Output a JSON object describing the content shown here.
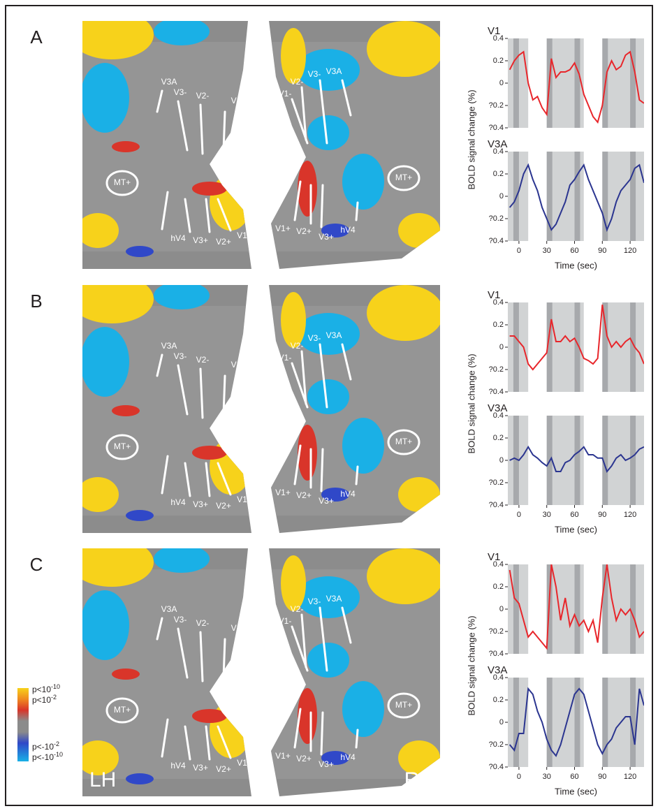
{
  "figure": {
    "panels": [
      "A",
      "B",
      "C"
    ],
    "areas_lh": [
      "V3A",
      "V3-",
      "V2-",
      "V1-",
      "MT+",
      "hV4",
      "V3+",
      "V2+",
      "V1+"
    ],
    "areas_rh": [
      "V1-",
      "V2-",
      "V3-",
      "V3A",
      "MT+",
      "V1+",
      "V2+",
      "V3+",
      "hV4"
    ],
    "hemispheres": [
      "LH",
      "RH"
    ],
    "legend": [
      {
        "base": "p<10",
        "exp": "-10"
      },
      {
        "base": "p<10",
        "exp": "-2"
      },
      {
        "base": "p<-10",
        "exp": "-2"
      },
      {
        "base": "p<-10",
        "exp": "-10"
      }
    ]
  },
  "stimulus_blocks": {
    "dark": [
      [
        -6,
        0
      ],
      [
        30,
        36
      ],
      [
        60,
        66
      ],
      [
        90,
        96
      ],
      [
        120,
        126
      ]
    ],
    "white": [
      [
        10,
        30
      ],
      [
        70,
        90
      ]
    ]
  },
  "chart_data": [
    {
      "type": "line",
      "title": "V1",
      "x": [
        -10,
        -5,
        0,
        5,
        10,
        15,
        20,
        25,
        30,
        35,
        40,
        45,
        50,
        55,
        60,
        65,
        70,
        75,
        80,
        85,
        90,
        95,
        100,
        105,
        110,
        115,
        120,
        125,
        130,
        135
      ],
      "series": [
        {
          "color": "#e8262b",
          "values": [
            0.12,
            0.2,
            0.25,
            0.28,
            0.0,
            -0.15,
            -0.12,
            -0.22,
            -0.28,
            0.22,
            0.05,
            0.1,
            0.1,
            0.12,
            0.18,
            0.08,
            -0.1,
            -0.2,
            -0.3,
            -0.35,
            -0.2,
            0.1,
            0.2,
            0.12,
            0.15,
            0.25,
            0.28,
            0.1,
            -0.15,
            -0.18
          ]
        }
      ],
      "xlim": [
        -12,
        135
      ],
      "ylim": [
        -0.4,
        0.4
      ],
      "yticks": [
        {
          "value": -0.4,
          "label": "?0.4"
        },
        {
          "value": -0.2,
          "label": "?0.2"
        },
        0,
        0.2,
        0.4
      ]
    },
    {
      "type": "line",
      "title": "V3A",
      "ylabel": "BOLD signal change (%)",
      "xlabel": "Time (sec)",
      "x": [
        -10,
        -5,
        0,
        5,
        10,
        15,
        20,
        25,
        30,
        35,
        40,
        45,
        50,
        55,
        60,
        65,
        70,
        75,
        80,
        85,
        90,
        95,
        100,
        105,
        110,
        115,
        120,
        125,
        130,
        135
      ],
      "series": [
        {
          "color": "#2b3590",
          "values": [
            -0.1,
            -0.05,
            0.05,
            0.2,
            0.28,
            0.15,
            0.05,
            -0.1,
            -0.2,
            -0.3,
            -0.25,
            -0.15,
            -0.05,
            0.1,
            0.15,
            0.22,
            0.28,
            0.15,
            0.05,
            -0.05,
            -0.15,
            -0.3,
            -0.2,
            -0.05,
            0.05,
            0.1,
            0.15,
            0.25,
            0.28,
            0.12
          ]
        }
      ],
      "xlim": [
        -12,
        135
      ],
      "xticks": [
        0,
        30,
        60,
        90,
        120
      ],
      "ylim": [
        -0.4,
        0.4
      ],
      "yticks": [
        {
          "value": -0.4,
          "label": "?0.4"
        },
        {
          "value": -0.2,
          "label": "?0.2"
        },
        0,
        0.2,
        0.4
      ]
    },
    {
      "type": "line",
      "title": "V1",
      "x": [
        -10,
        -5,
        0,
        5,
        10,
        15,
        20,
        25,
        30,
        35,
        40,
        45,
        50,
        55,
        60,
        65,
        70,
        75,
        80,
        85,
        90,
        95,
        100,
        105,
        110,
        115,
        120,
        125,
        130,
        135
      ],
      "series": [
        {
          "color": "#e8262b",
          "values": [
            0.1,
            0.1,
            0.05,
            0.0,
            -0.15,
            -0.2,
            -0.15,
            -0.1,
            -0.05,
            0.25,
            0.05,
            0.05,
            0.1,
            0.05,
            0.08,
            0.0,
            -0.1,
            -0.12,
            -0.15,
            -0.1,
            0.38,
            0.1,
            0.0,
            0.05,
            0.0,
            0.05,
            0.08,
            0.0,
            -0.05,
            -0.15
          ]
        }
      ],
      "xlim": [
        -12,
        135
      ],
      "ylim": [
        -0.4,
        0.4
      ],
      "yticks": [
        {
          "value": -0.4,
          "label": "?0.4"
        },
        {
          "value": -0.2,
          "label": "?0.2"
        },
        0,
        0.2,
        0.4
      ]
    },
    {
      "type": "line",
      "title": "V3A",
      "ylabel": "BOLD signal change (%)",
      "xlabel": "Time (sec)",
      "x": [
        -10,
        -5,
        0,
        5,
        10,
        15,
        20,
        25,
        30,
        35,
        40,
        45,
        50,
        55,
        60,
        65,
        70,
        75,
        80,
        85,
        90,
        95,
        100,
        105,
        110,
        115,
        120,
        125,
        130,
        135
      ],
      "series": [
        {
          "color": "#2b3590",
          "values": [
            0.0,
            0.02,
            0.0,
            0.05,
            0.12,
            0.05,
            0.02,
            -0.02,
            -0.05,
            0.02,
            -0.1,
            -0.1,
            -0.02,
            0.0,
            0.05,
            0.08,
            0.12,
            0.05,
            0.05,
            0.02,
            0.02,
            -0.1,
            -0.05,
            0.02,
            0.05,
            0.0,
            0.02,
            0.05,
            0.1,
            0.12
          ]
        }
      ],
      "xlim": [
        -12,
        135
      ],
      "xticks": [
        0,
        30,
        60,
        90,
        120
      ],
      "ylim": [
        -0.4,
        0.4
      ],
      "yticks": [
        {
          "value": -0.4,
          "label": "?0.4"
        },
        {
          "value": -0.2,
          "label": "?0.2"
        },
        0,
        0.2,
        0.4
      ]
    },
    {
      "type": "line",
      "title": "V1",
      "x": [
        -10,
        -5,
        0,
        5,
        10,
        15,
        20,
        25,
        30,
        35,
        40,
        45,
        50,
        55,
        60,
        65,
        70,
        75,
        80,
        85,
        90,
        95,
        100,
        105,
        110,
        115,
        120,
        125,
        130,
        135
      ],
      "series": [
        {
          "color": "#e8262b",
          "values": [
            0.35,
            0.1,
            0.05,
            -0.1,
            -0.25,
            -0.2,
            -0.25,
            -0.3,
            -0.35,
            0.4,
            0.2,
            -0.1,
            0.1,
            -0.15,
            -0.05,
            -0.15,
            -0.1,
            -0.2,
            -0.1,
            -0.3,
            0.1,
            0.4,
            0.1,
            -0.1,
            0.0,
            -0.05,
            0.0,
            -0.1,
            -0.25,
            -0.2
          ]
        }
      ],
      "xlim": [
        -12,
        135
      ],
      "ylim": [
        -0.4,
        0.4
      ],
      "yticks": [
        {
          "value": -0.4,
          "label": "?0.4"
        },
        {
          "value": -0.2,
          "label": "?0.2"
        },
        0,
        0.2,
        0.4
      ]
    },
    {
      "type": "line",
      "title": "V3A",
      "ylabel": "BOLD signal change (%)",
      "xlabel": "Time (sec)",
      "x": [
        -10,
        -5,
        0,
        5,
        10,
        15,
        20,
        25,
        30,
        35,
        40,
        45,
        50,
        55,
        60,
        65,
        70,
        75,
        80,
        85,
        90,
        95,
        100,
        105,
        110,
        115,
        120,
        125,
        130,
        135
      ],
      "series": [
        {
          "color": "#2b3590",
          "values": [
            -0.2,
            -0.25,
            -0.1,
            -0.1,
            0.3,
            0.25,
            0.1,
            0.0,
            -0.15,
            -0.25,
            -0.3,
            -0.2,
            -0.05,
            0.1,
            0.25,
            0.3,
            0.25,
            0.1,
            -0.05,
            -0.2,
            -0.28,
            -0.2,
            -0.15,
            -0.05,
            0.0,
            0.05,
            0.05,
            -0.2,
            0.3,
            0.15
          ]
        }
      ],
      "xlim": [
        -12,
        135
      ],
      "xticks": [
        0,
        30,
        60,
        90,
        120
      ],
      "ylim": [
        -0.4,
        0.4
      ],
      "yticks": [
        {
          "value": -0.4,
          "label": "?0.4"
        },
        {
          "value": -0.2,
          "label": "?0.2"
        },
        0,
        0.2,
        0.4
      ]
    }
  ]
}
